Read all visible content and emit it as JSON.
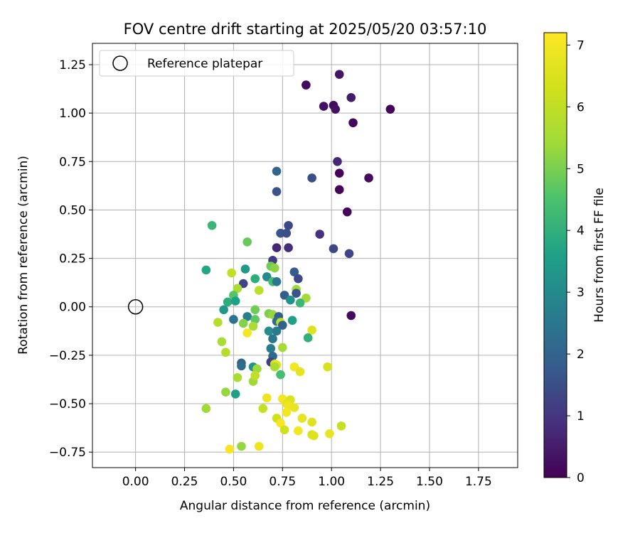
{
  "chart_data": {
    "type": "scatter",
    "title": "FOV centre drift starting at 2025/05/20 03:57:10",
    "xlabel": "Angular distance from reference (arcmin)",
    "ylabel": "Rotation from reference (arcmin)",
    "xlim": [
      -0.22,
      1.95
    ],
    "ylim": [
      -0.83,
      1.36
    ],
    "xticks": [
      "0.00",
      "0.25",
      "0.50",
      "0.75",
      "1.00",
      "1.25",
      "1.50",
      "1.75"
    ],
    "yticks": [
      "−0.75",
      "−0.50",
      "−0.25",
      "0.00",
      "0.25",
      "0.50",
      "0.75",
      "1.00",
      "1.25"
    ],
    "grid": true,
    "legend": {
      "placement": "top-left",
      "entries": [
        "Reference platepar"
      ]
    },
    "colorbar": {
      "label": "Hours from first FF file",
      "colormap": "viridis",
      "range": [
        0,
        7.2
      ],
      "ticks": [
        "0",
        "1",
        "2",
        "3",
        "4",
        "5",
        "6",
        "7"
      ]
    },
    "reference_point": {
      "x": 0.0,
      "y": 0.0
    },
    "points": [
      {
        "x": 0.87,
        "y": 1.145,
        "h": 0.2
      },
      {
        "x": 1.04,
        "y": 1.2,
        "h": 0.4
      },
      {
        "x": 0.96,
        "y": 1.035,
        "h": 0.3
      },
      {
        "x": 1.01,
        "y": 1.04,
        "h": 0.2
      },
      {
        "x": 1.02,
        "y": 1.02,
        "h": 0.3
      },
      {
        "x": 1.1,
        "y": 1.08,
        "h": 0.5
      },
      {
        "x": 1.3,
        "y": 1.02,
        "h": 0.1
      },
      {
        "x": 1.11,
        "y": 0.95,
        "h": 0.1
      },
      {
        "x": 1.03,
        "y": 0.75,
        "h": 0.7
      },
      {
        "x": 1.04,
        "y": 0.69,
        "h": 0.1
      },
      {
        "x": 1.19,
        "y": 0.665,
        "h": 0.2
      },
      {
        "x": 1.04,
        "y": 0.605,
        "h": 0.1
      },
      {
        "x": 1.08,
        "y": 0.49,
        "h": 0.1
      },
      {
        "x": 0.9,
        "y": 0.665,
        "h": 1.5
      },
      {
        "x": 0.72,
        "y": 0.7,
        "h": 2.0
      },
      {
        "x": 0.72,
        "y": 0.595,
        "h": 1.6
      },
      {
        "x": 0.78,
        "y": 0.42,
        "h": 1.4
      },
      {
        "x": 0.74,
        "y": 0.38,
        "h": 1.6
      },
      {
        "x": 0.77,
        "y": 0.38,
        "h": 1.5
      },
      {
        "x": 0.94,
        "y": 0.375,
        "h": 0.9
      },
      {
        "x": 1.01,
        "y": 0.3,
        "h": 1.4
      },
      {
        "x": 1.09,
        "y": 0.275,
        "h": 1.3
      },
      {
        "x": 0.72,
        "y": 0.305,
        "h": 0.7
      },
      {
        "x": 0.78,
        "y": 0.305,
        "h": 0.8
      },
      {
        "x": 0.7,
        "y": 0.24,
        "h": 1.1
      },
      {
        "x": 0.39,
        "y": 0.42,
        "h": 4.2
      },
      {
        "x": 0.57,
        "y": 0.335,
        "h": 4.8
      },
      {
        "x": 0.36,
        "y": 0.19,
        "h": 3.7
      },
      {
        "x": 0.56,
        "y": 0.195,
        "h": 3.4
      },
      {
        "x": 0.69,
        "y": 0.21,
        "h": 4.9
      },
      {
        "x": 0.71,
        "y": 0.2,
        "h": 5.2
      },
      {
        "x": 0.81,
        "y": 0.18,
        "h": 1.8
      },
      {
        "x": 0.83,
        "y": 0.145,
        "h": 1.4
      },
      {
        "x": 0.61,
        "y": 0.145,
        "h": 3.9
      },
      {
        "x": 0.67,
        "y": 0.155,
        "h": 3.0
      },
      {
        "x": 0.55,
        "y": 0.12,
        "h": 1.3
      },
      {
        "x": 0.7,
        "y": 0.13,
        "h": 4.4
      },
      {
        "x": 0.72,
        "y": 0.13,
        "h": 2.5
      },
      {
        "x": 0.49,
        "y": 0.175,
        "h": 6.0
      },
      {
        "x": 0.52,
        "y": 0.095,
        "h": 5.6
      },
      {
        "x": 0.63,
        "y": 0.085,
        "h": 5.9
      },
      {
        "x": 0.82,
        "y": 0.09,
        "h": 5.4
      },
      {
        "x": 0.82,
        "y": 0.07,
        "h": 1.6
      },
      {
        "x": 0.76,
        "y": 0.06,
        "h": 1.8
      },
      {
        "x": 0.5,
        "y": 0.06,
        "h": 4.6
      },
      {
        "x": 0.79,
        "y": 0.035,
        "h": 3.2
      },
      {
        "x": 0.87,
        "y": 0.045,
        "h": 5.5
      },
      {
        "x": 0.84,
        "y": 0.02,
        "h": 4.2
      },
      {
        "x": 0.47,
        "y": 0.025,
        "h": 3.9
      },
      {
        "x": 0.51,
        "y": 0.03,
        "h": 3.6
      },
      {
        "x": 0.45,
        "y": -0.015,
        "h": 3.4
      },
      {
        "x": 0.61,
        "y": -0.015,
        "h": 4.9
      },
      {
        "x": 0.68,
        "y": -0.035,
        "h": 5.0
      },
      {
        "x": 0.7,
        "y": -0.04,
        "h": 5.3
      },
      {
        "x": 0.73,
        "y": -0.05,
        "h": 1.9
      },
      {
        "x": 0.57,
        "y": -0.05,
        "h": 2.7
      },
      {
        "x": 0.5,
        "y": -0.065,
        "h": 2.4
      },
      {
        "x": 0.61,
        "y": -0.065,
        "h": 4.7
      },
      {
        "x": 0.8,
        "y": -0.07,
        "h": 3.6
      },
      {
        "x": 1.1,
        "y": -0.045,
        "h": 0.2
      },
      {
        "x": 0.42,
        "y": -0.08,
        "h": 5.8
      },
      {
        "x": 0.55,
        "y": -0.085,
        "h": 5.1
      },
      {
        "x": 0.6,
        "y": -0.1,
        "h": 5.6
      },
      {
        "x": 0.72,
        "y": -0.075,
        "h": 2.2
      },
      {
        "x": 0.74,
        "y": -0.08,
        "h": 5.9
      },
      {
        "x": 0.75,
        "y": -0.095,
        "h": 1.9
      },
      {
        "x": 0.68,
        "y": -0.125,
        "h": 3.1
      },
      {
        "x": 0.72,
        "y": -0.125,
        "h": 2.6
      },
      {
        "x": 0.57,
        "y": -0.135,
        "h": 7.0
      },
      {
        "x": 0.9,
        "y": -0.12,
        "h": 6.6
      },
      {
        "x": 0.88,
        "y": -0.16,
        "h": 4.0
      },
      {
        "x": 0.7,
        "y": -0.165,
        "h": 2.5
      },
      {
        "x": 0.44,
        "y": -0.18,
        "h": 5.6
      },
      {
        "x": 0.69,
        "y": -0.215,
        "h": 2.6
      },
      {
        "x": 0.75,
        "y": -0.21,
        "h": 5.5
      },
      {
        "x": 0.46,
        "y": -0.235,
        "h": 5.8
      },
      {
        "x": 0.7,
        "y": -0.255,
        "h": 2.1
      },
      {
        "x": 0.54,
        "y": -0.29,
        "h": 2.0
      },
      {
        "x": 0.54,
        "y": -0.305,
        "h": 2.2
      },
      {
        "x": 0.6,
        "y": -0.31,
        "h": 3.2
      },
      {
        "x": 0.62,
        "y": -0.32,
        "h": 5.4
      },
      {
        "x": 0.69,
        "y": -0.285,
        "h": 1.2
      },
      {
        "x": 0.71,
        "y": -0.295,
        "h": 6.5
      },
      {
        "x": 0.72,
        "y": -0.3,
        "h": 6.7
      },
      {
        "x": 0.71,
        "y": -0.31,
        "h": 5.6
      },
      {
        "x": 0.81,
        "y": -0.31,
        "h": 7.0
      },
      {
        "x": 0.84,
        "y": -0.335,
        "h": 6.7
      },
      {
        "x": 0.98,
        "y": -0.31,
        "h": 6.4
      },
      {
        "x": 0.74,
        "y": -0.35,
        "h": 4.4
      },
      {
        "x": 0.52,
        "y": -0.365,
        "h": 5.6
      },
      {
        "x": 0.6,
        "y": -0.385,
        "h": 5.4
      },
      {
        "x": 0.61,
        "y": -0.355,
        "h": 6.0
      },
      {
        "x": 0.46,
        "y": -0.44,
        "h": 5.3
      },
      {
        "x": 0.51,
        "y": -0.45,
        "h": 3.6
      },
      {
        "x": 0.67,
        "y": -0.47,
        "h": 6.9
      },
      {
        "x": 0.75,
        "y": -0.475,
        "h": 7.0
      },
      {
        "x": 0.79,
        "y": -0.48,
        "h": 6.5
      },
      {
        "x": 0.77,
        "y": -0.5,
        "h": 6.7
      },
      {
        "x": 0.78,
        "y": -0.51,
        "h": 6.9
      },
      {
        "x": 0.81,
        "y": -0.52,
        "h": 6.8
      },
      {
        "x": 0.65,
        "y": -0.525,
        "h": 6.1
      },
      {
        "x": 0.36,
        "y": -0.525,
        "h": 5.4
      },
      {
        "x": 0.77,
        "y": -0.545,
        "h": 7.0
      },
      {
        "x": 0.72,
        "y": -0.575,
        "h": 6.3
      },
      {
        "x": 0.85,
        "y": -0.575,
        "h": 6.7
      },
      {
        "x": 0.74,
        "y": -0.6,
        "h": 7.1
      },
      {
        "x": 0.9,
        "y": -0.595,
        "h": 6.6
      },
      {
        "x": 1.05,
        "y": -0.615,
        "h": 6.1
      },
      {
        "x": 0.76,
        "y": -0.635,
        "h": 6.3
      },
      {
        "x": 0.83,
        "y": -0.64,
        "h": 7.0
      },
      {
        "x": 0.9,
        "y": -0.66,
        "h": 6.4
      },
      {
        "x": 0.91,
        "y": -0.665,
        "h": 6.6
      },
      {
        "x": 0.99,
        "y": -0.655,
        "h": 6.8
      },
      {
        "x": 0.48,
        "y": -0.735,
        "h": 7.1
      },
      {
        "x": 0.54,
        "y": -0.72,
        "h": 5.3
      },
      {
        "x": 0.63,
        "y": -0.72,
        "h": 6.9
      }
    ]
  }
}
